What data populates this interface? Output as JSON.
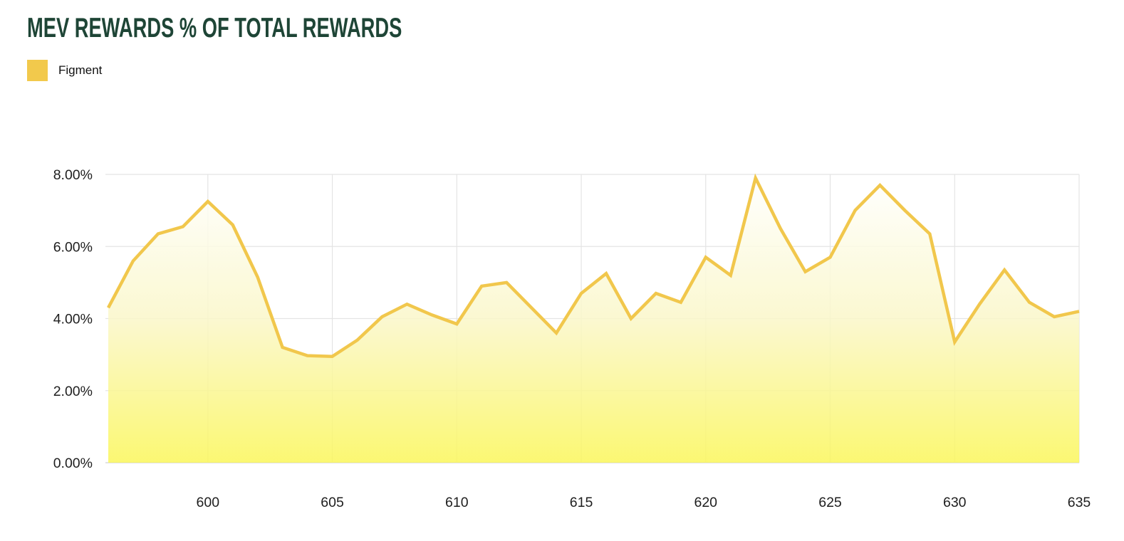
{
  "header": {
    "title": "MEV REWARDS % OF TOTAL REWARDS",
    "title_color": "#1E4536"
  },
  "legend": {
    "items": [
      {
        "label": "Figment",
        "color": "#F2C94C"
      }
    ]
  },
  "chart_data": {
    "type": "area",
    "title": "MEV REWARDS % OF TOTAL REWARDS",
    "xlabel": "",
    "ylabel": "",
    "xlim": [
      596,
      635
    ],
    "ylim": [
      0,
      8
    ],
    "grid": true,
    "legend_position": "top-left",
    "x": [
      596,
      597,
      598,
      599,
      600,
      601,
      602,
      603,
      604,
      605,
      606,
      607,
      608,
      609,
      610,
      611,
      612,
      613,
      614,
      615,
      616,
      617,
      618,
      619,
      620,
      621,
      622,
      623,
      624,
      625,
      626,
      627,
      628,
      629,
      630,
      631,
      632,
      633,
      634,
      635
    ],
    "series": [
      {
        "name": "Figment",
        "values": [
          4.3,
          5.6,
          6.35,
          6.55,
          7.25,
          6.6,
          5.15,
          3.2,
          2.97,
          2.95,
          3.4,
          4.05,
          4.4,
          4.1,
          3.85,
          4.9,
          5.0,
          4.3,
          3.6,
          4.7,
          5.25,
          4.0,
          4.7,
          4.45,
          5.7,
          5.2,
          7.9,
          6.5,
          5.3,
          5.7,
          7.0,
          7.7,
          7.0,
          6.35,
          3.35,
          4.4,
          5.35,
          4.45,
          4.05,
          4.2
        ]
      }
    ],
    "x_ticks": [
      600,
      605,
      610,
      615,
      620,
      625,
      630,
      635
    ],
    "x_tick_labels": [
      "600",
      "605",
      "610",
      "615",
      "620",
      "625",
      "630",
      "635"
    ],
    "y_ticks": [
      0,
      2,
      4,
      6,
      8
    ],
    "y_tick_labels": [
      "0.00%",
      "2.00%",
      "4.00%",
      "6.00%",
      "8.00%"
    ],
    "line_color": "#F1C74C",
    "fill_gradient": {
      "stops": [
        [
          "0%",
          "#FFFFFF"
        ],
        [
          "50%",
          "#FAF7C9"
        ],
        [
          "100%",
          "#FAF65A"
        ]
      ],
      "opacity": 0.85
    },
    "grid_color": "#E4E4E4",
    "axis_line_color": "#DADADA",
    "axis_label_color": "#1E1E1E"
  }
}
